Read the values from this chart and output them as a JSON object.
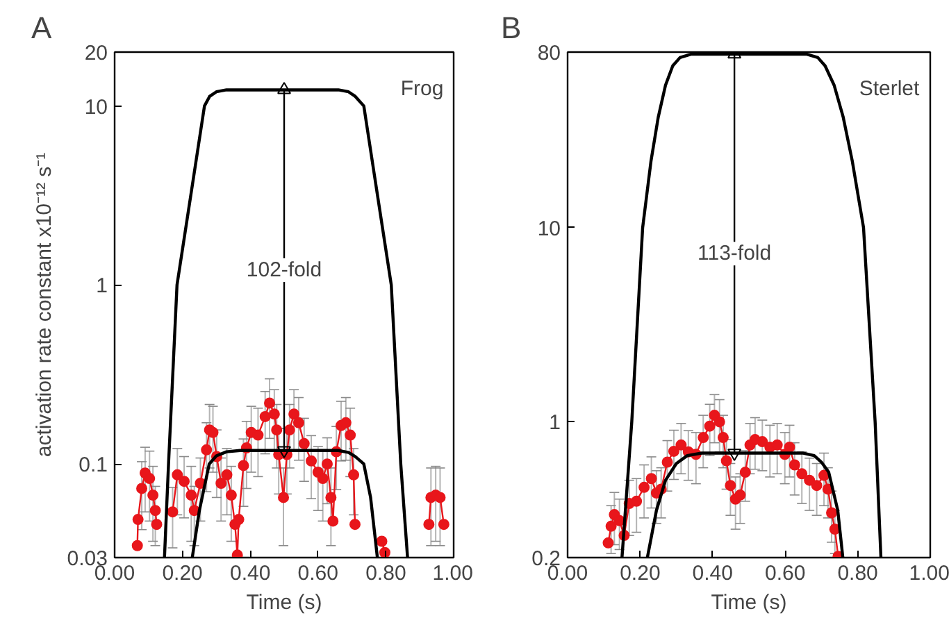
{
  "chart_data": [
    {
      "type": "line",
      "title": "A",
      "xlabel": "Time (s)",
      "ylabel": "activation rate constant x10⁻¹² s⁻¹",
      "log": "y",
      "xlim": [
        0,
        1
      ],
      "xticks": [
        {
          "value": 0,
          "label": "0.00"
        },
        {
          "value": 0.2,
          "label": "0.20"
        },
        {
          "value": 0.4,
          "label": "0.40"
        },
        {
          "value": 0.6,
          "label": "0.60"
        },
        {
          "value": 0.8,
          "label": "0.80"
        },
        {
          "value": 1,
          "label": "1.00"
        }
      ],
      "ylim": [
        0.03,
        20
      ],
      "yticks": [
        0.03,
        0.1,
        1,
        10,
        20
      ],
      "grid": false,
      "annotations": [
        "Frog",
        "102-fold"
      ],
      "series": [
        {
          "color": "#e8161b",
          "marker": "circle",
          "x": [
            0.067,
            0.069,
            0.08,
            0.09,
            0.103,
            0.113,
            0.12,
            0.124,
            0.15,
            0.171,
            0.185,
            0.205,
            0.226,
            0.235,
            0.253,
            0.271,
            0.28,
            0.29,
            0.301,
            0.314,
            0.331,
            0.344,
            0.355,
            0.362,
            0.366,
            0.38,
            0.389,
            0.403,
            0.423,
            0.444,
            0.457,
            0.471,
            0.478,
            0.484,
            0.498,
            0.508,
            0.516,
            0.529,
            0.543,
            0.559,
            0.58,
            0.6,
            0.614,
            0.627,
            0.638,
            0.644,
            0.654,
            0.668,
            0.682,
            0.695,
            0.705,
            0.709,
            0.75,
            0.788,
            0.797,
            0.86,
            0.927,
            0.933,
            0.947,
            0.96,
            0.971
          ],
          "values": [
            0.035,
            0.049,
            0.073,
            0.089,
            0.083,
            0.067,
            0.055,
            0.046,
            null,
            0.054,
            0.087,
            0.08,
            0.067,
            0.055,
            0.078,
            0.12,
            0.155,
            0.15,
            0.11,
            0.078,
            0.087,
            0.067,
            0.046,
            0.031,
            0.049,
            0.098,
            0.123,
            0.15,
            0.145,
            0.184,
            0.219,
            0.19,
            0.155,
            0.113,
            0.065,
            0.113,
            0.155,
            0.19,
            0.17,
            0.13,
            0.104,
            0.09,
            0.083,
            0.1,
            0.065,
            0.048,
            0.117,
            0.164,
            0.17,
            0.145,
            0.087,
            0.046,
            null,
            0.037,
            0.032,
            null,
            0.046,
            0.065,
            0.067,
            0.065,
            0.046
          ],
          "errors": [
            null,
            null,
            0.03,
            0.035,
            0.035,
            0.03,
            0.02,
            null,
            null,
            0.02,
            0.035,
            0.03,
            0.03,
            0.02,
            0.03,
            0.05,
            0.06,
            0.06,
            0.045,
            0.03,
            0.035,
            0.03,
            null,
            null,
            null,
            0.04,
            0.05,
            0.06,
            0.06,
            0.07,
            0.08,
            0.07,
            0.06,
            0.045,
            0.03,
            0.045,
            0.06,
            0.07,
            0.065,
            0.05,
            0.04,
            0.035,
            0.035,
            0.04,
            0.03,
            null,
            0.045,
            0.06,
            0.065,
            0.06,
            0.035,
            null,
            null,
            null,
            null,
            null,
            null,
            0.03,
            0.03,
            0.03,
            null
          ]
        },
        {
          "color": "#000000",
          "x": [
            0.147,
            0.159,
            0.184,
            0.225,
            0.265,
            0.28,
            0.3,
            0.33,
            0.66,
            0.69,
            0.71,
            0.735,
            0.775,
            0.816,
            0.844,
            0.864
          ],
          "values": [
            0.03,
            0.1,
            1,
            3.2,
            10,
            11.3,
            12,
            12.3,
            12.3,
            12,
            11.3,
            10,
            3.2,
            1,
            0.1,
            0.03
          ]
        },
        {
          "color": "#000000",
          "x": [
            0.229,
            0.25,
            0.279,
            0.3,
            0.33,
            0.37,
            0.66,
            0.69,
            0.71,
            0.735,
            0.755,
            0.775
          ],
          "values": [
            0.03,
            0.055,
            0.1,
            0.111,
            0.117,
            0.119,
            0.119,
            0.116,
            0.11,
            0.1,
            0.065,
            0.03
          ]
        },
        {
          "color": "#000000",
          "marker": "triangle",
          "x": [
            0.5,
            0.5
          ],
          "values": [
            0.119,
            12.3
          ]
        }
      ]
    },
    {
      "type": "line",
      "title": "B",
      "xlabel": "Time (s)",
      "log": "y",
      "xlim": [
        0,
        1
      ],
      "xticks": [
        {
          "value": 0,
          "label": "0.00"
        },
        {
          "value": 0.2,
          "label": "0.20"
        },
        {
          "value": 0.4,
          "label": "0.40"
        },
        {
          "value": 0.6,
          "label": "0.60"
        },
        {
          "value": 0.8,
          "label": "0.80"
        },
        {
          "value": 1,
          "label": "1.00"
        }
      ],
      "ylim": [
        0.2,
        80
      ],
      "yticks": [
        0.2,
        1,
        10,
        80
      ],
      "grid": false,
      "annotations": [
        "Sterlet",
        "113-fold"
      ],
      "series": [
        {
          "color": "#e8161b",
          "marker": "circle",
          "x": [
            0.112,
            0.12,
            0.129,
            0.143,
            0.156,
            0.17,
            0.19,
            0.211,
            0.231,
            0.245,
            0.258,
            0.275,
            0.293,
            0.313,
            0.333,
            0.354,
            0.374,
            0.392,
            0.405,
            0.419,
            0.429,
            0.438,
            0.449,
            0.463,
            0.476,
            0.49,
            0.503,
            0.517,
            0.537,
            0.558,
            0.578,
            0.599,
            0.612,
            0.626,
            0.646,
            0.667,
            0.687,
            0.707,
            0.718,
            0.728,
            0.737,
            0.746
          ],
          "values": [
            0.238,
            0.29,
            0.333,
            0.31,
            0.26,
            0.38,
            0.39,
            0.46,
            0.51,
            0.43,
            0.45,
            0.62,
            0.705,
            0.76,
            0.7,
            0.68,
            0.83,
            0.95,
            1.08,
            1.0,
            0.83,
            0.63,
            0.47,
            0.4,
            0.42,
            0.55,
            0.76,
            0.81,
            0.79,
            0.74,
            0.76,
            0.68,
            0.74,
            0.6,
            0.54,
            0.5,
            0.47,
            0.53,
            0.45,
            0.34,
            0.28,
            0.203
          ],
          "errors": [
            null,
            0.08,
            0.1,
            0.09,
            null,
            0.12,
            0.12,
            0.14,
            0.15,
            0.13,
            0.13,
            0.18,
            0.2,
            0.22,
            0.2,
            0.2,
            0.25,
            0.28,
            0.3,
            0.3,
            0.25,
            0.18,
            0.14,
            0.12,
            0.12,
            0.16,
            0.22,
            0.24,
            0.23,
            0.22,
            0.22,
            0.2,
            0.22,
            0.18,
            0.16,
            0.15,
            0.14,
            0.16,
            0.13,
            0.1,
            0.07,
            null
          ]
        },
        {
          "color": "#000000",
          "x": [
            0.15,
            0.177,
            0.207,
            0.23,
            0.25,
            0.27,
            0.29,
            0.31,
            0.34,
            0.66,
            0.69,
            0.71,
            0.735,
            0.76,
            0.785,
            0.816,
            0.848,
            0.864
          ],
          "values": [
            0.2,
            1,
            10,
            22,
            37,
            54,
            68,
            75,
            78,
            78,
            75,
            68,
            54,
            37,
            22,
            10,
            1,
            0.2
          ]
        },
        {
          "color": "#000000",
          "x": [
            0.22,
            0.245,
            0.27,
            0.3,
            0.33,
            0.37,
            0.65,
            0.68,
            0.7,
            0.72,
            0.745,
            0.759
          ],
          "values": [
            0.2,
            0.35,
            0.5,
            0.61,
            0.67,
            0.69,
            0.69,
            0.67,
            0.62,
            0.55,
            0.35,
            0.2
          ]
        },
        {
          "color": "#000000",
          "marker": "triangle",
          "x": [
            0.46,
            0.46
          ],
          "values": [
            0.69,
            78
          ]
        }
      ]
    }
  ]
}
